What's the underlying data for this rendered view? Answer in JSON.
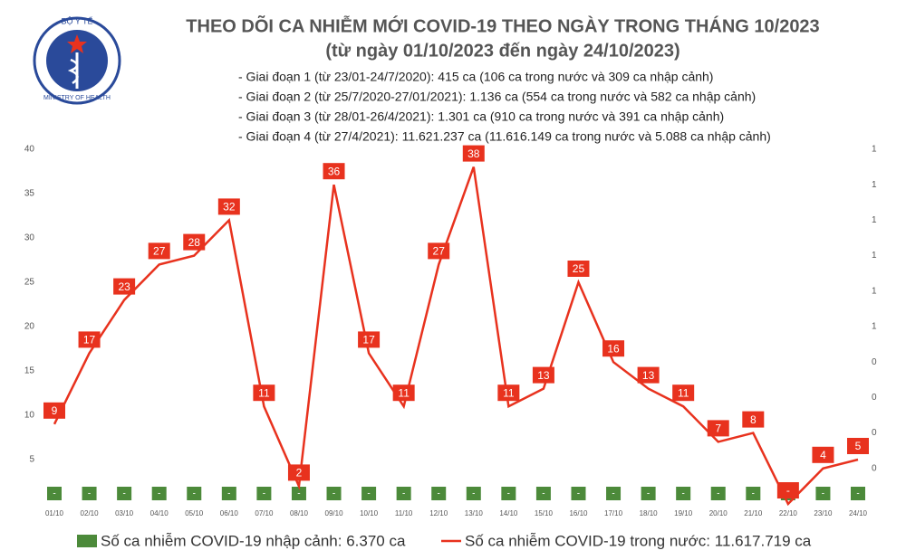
{
  "logo": {
    "top": "BỘ Y TẾ",
    "bottom": "MINISTRY OF HEALTH"
  },
  "chart_data": {
    "type": "line",
    "title": "THEO DÕI CA NHIỄM MỚI COVID-19 THEO NGÀY TRONG THÁNG 10/2023",
    "subtitle": "(từ ngày 01/10/2023 đến ngày 24/10/2023)",
    "notes": [
      "- Giai đoạn 1 (từ 23/01-24/7/2020): 415 ca (106 ca trong nước và 309 ca nhập cảnh)",
      "- Giai đoạn 2 (từ 25/7/2020-27/01/2021): 1.136 ca (554 ca trong nước và 582 ca nhập cảnh)",
      "- Giai đoạn 3 (từ 28/01-26/4/2021): 1.301 ca (910 ca trong nước và 391 ca nhập cảnh)",
      "- Giai đoạn 4 (từ 27/4/2021): 11.621.237 ca (11.616.149 ca trong nước và 5.088 ca nhập cảnh)"
    ],
    "categories": [
      "01/10",
      "02/10",
      "03/10",
      "04/10",
      "05/10",
      "06/10",
      "07/10",
      "08/10",
      "09/10",
      "10/10",
      "11/10",
      "12/10",
      "13/10",
      "14/10",
      "15/10",
      "16/10",
      "17/10",
      "18/10",
      "19/10",
      "20/10",
      "21/10",
      "22/10",
      "23/10",
      "24/10"
    ],
    "ylim": [
      0,
      40
    ],
    "yticks": [
      5,
      10,
      15,
      20,
      25,
      30,
      35,
      40
    ],
    "y2lim": [
      0,
      1
    ],
    "y2ticks": [
      {
        "value": 0.1,
        "label": "0"
      },
      {
        "value": 0.2,
        "label": "0"
      },
      {
        "value": 0.3,
        "label": "0"
      },
      {
        "value": 0.4,
        "label": "0"
      },
      {
        "value": 0.5,
        "label": "1"
      },
      {
        "value": 0.6,
        "label": "1"
      },
      {
        "value": 0.7,
        "label": "1"
      },
      {
        "value": 0.8,
        "label": "1"
      },
      {
        "value": 0.9,
        "label": "1"
      },
      {
        "value": 1,
        "label": "1"
      }
    ],
    "series": [
      {
        "name": "Số ca nhiễm COVID-19 nhập cảnh: 6.370 ca",
        "type": "bar",
        "axis": "y2",
        "color": "#4c8a3a",
        "values": [
          0,
          0,
          0,
          0,
          0,
          0,
          0,
          0,
          0,
          0,
          0,
          0,
          0,
          0,
          0,
          0,
          0,
          0,
          0,
          0,
          0,
          0,
          0,
          0
        ],
        "value_labels": [
          "-",
          "-",
          "-",
          "-",
          "-",
          "-",
          "-",
          "-",
          "-",
          "-",
          "-",
          "-",
          "-",
          "-",
          "-",
          "-",
          "-",
          "-",
          "-",
          "-",
          "-",
          "-",
          "-",
          "-"
        ]
      },
      {
        "name": "Số ca nhiễm COVID-19 trong nước: 11.617.719 ca",
        "type": "line",
        "color": "#e8321e",
        "values": [
          9,
          17,
          23,
          27,
          28,
          32,
          11,
          2,
          36,
          17,
          11,
          27,
          38,
          11,
          13,
          25,
          16,
          13,
          11,
          7,
          8,
          0,
          4,
          5
        ],
        "value_labels": [
          "9",
          "17",
          "23",
          "27",
          "28",
          "32",
          "11",
          "2",
          "36",
          "17",
          "11",
          "27",
          "38",
          "11",
          "13",
          "25",
          "16",
          "13",
          "11",
          "7",
          "8",
          "-",
          "4",
          "5"
        ]
      }
    ]
  }
}
